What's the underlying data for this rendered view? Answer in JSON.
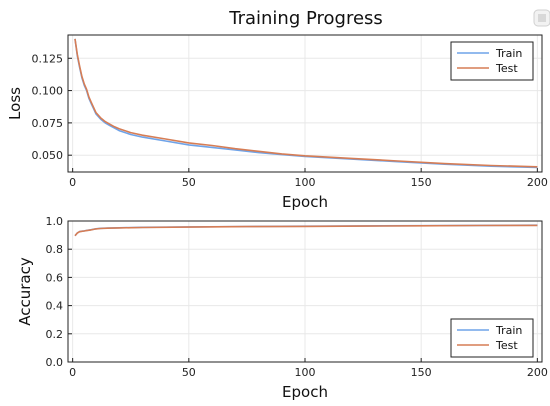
{
  "figure": {
    "title": "Training Progress"
  },
  "chart_data": [
    {
      "type": "line",
      "title": "",
      "xlabel": "Epoch",
      "ylabel": "Loss",
      "xlim": [
        -2,
        202
      ],
      "ylim": [
        0.037,
        0.143
      ],
      "xticks": [
        0,
        50,
        100,
        150,
        200
      ],
      "xtick_labels": [
        "0",
        "50",
        "100",
        "150",
        "200"
      ],
      "yticks": [
        0.05,
        0.075,
        0.1,
        0.125
      ],
      "ytick_labels": [
        "0.050",
        "0.075",
        "0.100",
        "0.125"
      ],
      "grid": true,
      "legend": "top-right",
      "x": [
        1,
        2,
        3,
        4,
        5,
        6,
        7,
        8,
        9,
        10,
        12,
        14,
        16,
        18,
        20,
        25,
        30,
        40,
        50,
        60,
        70,
        80,
        90,
        100,
        120,
        140,
        160,
        180,
        200
      ],
      "series": [
        {
          "name": "Train",
          "color": "#6fa3e8",
          "values": [
            0.14,
            0.127,
            0.118,
            0.11,
            0.104,
            0.1,
            0.094,
            0.09,
            0.086,
            0.082,
            0.078,
            0.075,
            0.073,
            0.071,
            0.069,
            0.066,
            0.064,
            0.061,
            0.058,
            0.056,
            0.054,
            0.052,
            0.0505,
            0.049,
            0.047,
            0.045,
            0.043,
            0.0415,
            0.0405
          ]
        },
        {
          "name": "Test",
          "color": "#d67d55",
          "values": [
            0.14,
            0.128,
            0.119,
            0.111,
            0.105,
            0.101,
            0.095,
            0.091,
            0.087,
            0.083,
            0.079,
            0.076,
            0.074,
            0.072,
            0.0705,
            0.0675,
            0.0655,
            0.0625,
            0.0595,
            0.0575,
            0.055,
            0.053,
            0.051,
            0.0495,
            0.0475,
            0.0455,
            0.0435,
            0.042,
            0.041
          ]
        }
      ]
    },
    {
      "type": "line",
      "title": "",
      "xlabel": "Epoch",
      "ylabel": "Accuracy",
      "xlim": [
        -2,
        202
      ],
      "ylim": [
        0.0,
        1.0
      ],
      "xticks": [
        0,
        50,
        100,
        150,
        200
      ],
      "xtick_labels": [
        "0",
        "50",
        "100",
        "150",
        "200"
      ],
      "yticks": [
        0.0,
        0.2,
        0.4,
        0.6,
        0.8,
        1.0
      ],
      "ytick_labels": [
        "0.0",
        "0.2",
        "0.4",
        "0.6",
        "0.8",
        "1.0"
      ],
      "grid": true,
      "legend": "bottom-right",
      "x": [
        1,
        2,
        3,
        4,
        5,
        6,
        8,
        10,
        12,
        15,
        20,
        30,
        50,
        75,
        100,
        125,
        150,
        175,
        200
      ],
      "series": [
        {
          "name": "Train",
          "color": "#6fa3e8",
          "values": [
            0.895,
            0.915,
            0.925,
            0.928,
            0.93,
            0.933,
            0.938,
            0.945,
            0.948,
            0.95,
            0.952,
            0.955,
            0.958,
            0.961,
            0.963,
            0.965,
            0.967,
            0.969,
            0.97
          ]
        },
        {
          "name": "Test",
          "color": "#d67d55",
          "values": [
            0.895,
            0.915,
            0.924,
            0.927,
            0.929,
            0.932,
            0.937,
            0.944,
            0.947,
            0.949,
            0.951,
            0.954,
            0.957,
            0.96,
            0.962,
            0.964,
            0.966,
            0.968,
            0.969
          ]
        }
      ]
    }
  ]
}
